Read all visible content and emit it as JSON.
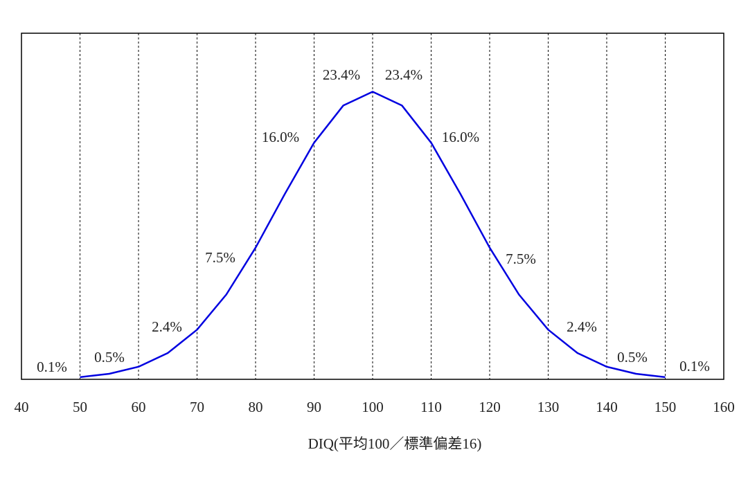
{
  "chart_data": {
    "type": "line",
    "x_label": "DIQ(平均100／標準偏差16)",
    "xlim": [
      40,
      160
    ],
    "xticks": [
      40,
      50,
      60,
      70,
      80,
      90,
      100,
      110,
      120,
      130,
      140,
      150,
      160
    ],
    "ylim": [
      0,
      3.0
    ],
    "grid": true,
    "series": [
      {
        "color": "#0000e0",
        "x": [
          50,
          55,
          60,
          65,
          70,
          75,
          80,
          85,
          90,
          95,
          100,
          105,
          110,
          115,
          120,
          125,
          130,
          135,
          140,
          145,
          150
        ],
        "values": [
          0.019,
          0.048,
          0.109,
          0.228,
          0.43,
          0.735,
          1.141,
          1.607,
          2.051,
          2.374,
          2.493,
          2.374,
          2.051,
          1.607,
          1.141,
          0.735,
          0.43,
          0.228,
          0.109,
          0.048,
          0.019
        ]
      }
    ],
    "band_labels": {
      "values": [
        0.1,
        0.5,
        2.4,
        7.5,
        16.0,
        23.4,
        23.4,
        16.0,
        7.5,
        2.4,
        0.5,
        0.1
      ],
      "value_labels": [
        "0.1%",
        "0.5%",
        "2.4%",
        "7.5%",
        "16.0%",
        "23.4%",
        "23.4%",
        "16.0%",
        "7.5%",
        "2.4%",
        "0.5%",
        "0.1%"
      ]
    }
  }
}
